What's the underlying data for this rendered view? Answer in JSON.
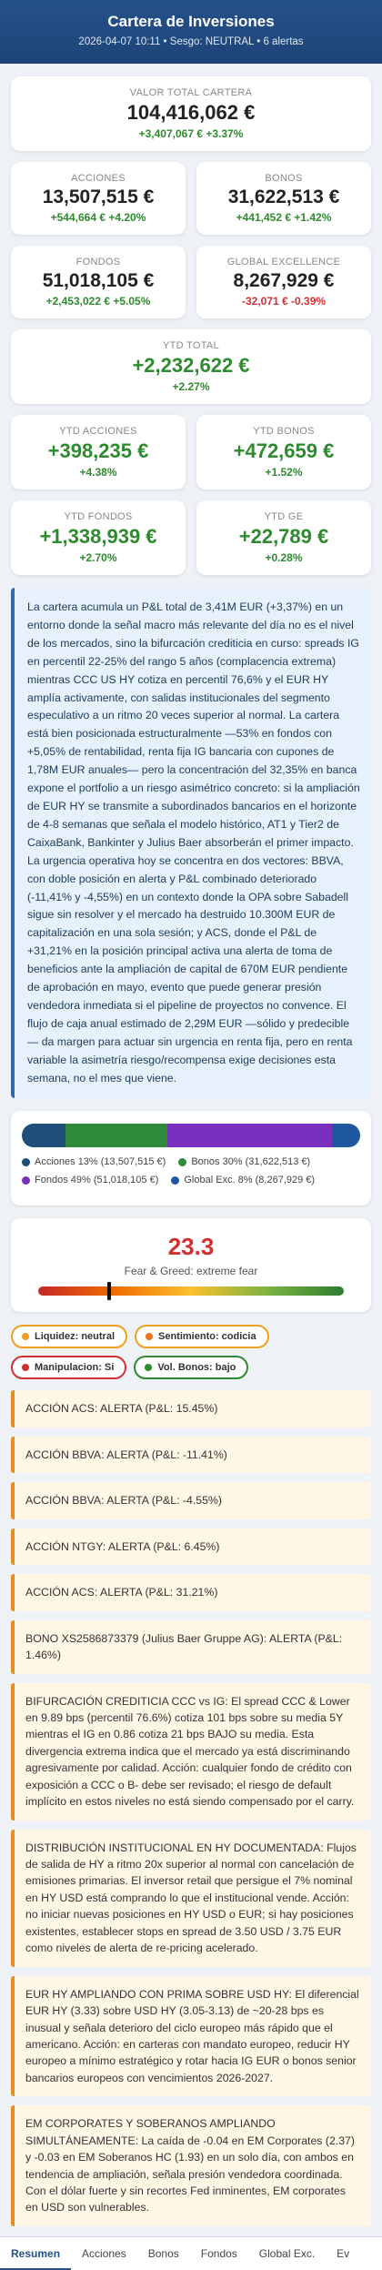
{
  "header": {
    "title": "Cartera de Inversiones",
    "subtitle": "2026-04-07 10:11 • Sesgo: NEUTRAL • 6 alertas"
  },
  "total": {
    "label": "VALOR TOTAL CARTERA",
    "value": "104,416,062 €",
    "change": "+3,407,067 € +3.37%"
  },
  "cards": [
    {
      "label": "ACCIONES",
      "value": "13,507,515 €",
      "change": "+544,664 € +4.20%",
      "tone": "pos"
    },
    {
      "label": "BONOS",
      "value": "31,622,513 €",
      "change": "+441,452 € +1.42%",
      "tone": "pos"
    },
    {
      "label": "FONDOS",
      "value": "51,018,105 €",
      "change": "+2,453,022 € +5.05%",
      "tone": "pos"
    },
    {
      "label": "GLOBAL EXCELLENCE",
      "value": "8,267,929 €",
      "change": "-32,071 € -0.39%",
      "tone": "neg"
    }
  ],
  "ytd_total": {
    "label": "YTD TOTAL",
    "value": "+2,232,622 €",
    "pct": "+2.27%"
  },
  "ytd_cards": [
    {
      "label": "YTD ACCIONES",
      "value": "+398,235 €",
      "pct": "+4.38%"
    },
    {
      "label": "YTD BONOS",
      "value": "+472,659 €",
      "pct": "+1.52%"
    },
    {
      "label": "YTD FONDOS",
      "value": "+1,338,939 €",
      "pct": "+2.70%"
    },
    {
      "label": "YTD GE",
      "value": "+22,789 €",
      "pct": "+0.28%"
    }
  ],
  "narrative": "La cartera acumula un P&L total de 3,41M EUR (+3,37%) en un entorno donde la señal macro más relevante del día no es el nivel de los mercados, sino la bifurcación crediticia en curso: spreads IG en percentil 22-25% del rango 5 años (complacencia extrema) mientras CCC US HY cotiza en percentil 76,6% y el EUR HY amplía activamente, con salidas institucionales del segmento especulativo a un ritmo 20 veces superior al normal. La cartera está bien posicionada estructuralmente —53% en fondos con +5,05% de rentabilidad, renta fija IG bancaria con cupones de 1,78M EUR anuales— pero la concentración del 32,35% en banca expone el portfolio a un riesgo asimétrico concreto: si la ampliación de EUR HY se transmite a subordinados bancarios en el horizonte de 4-8 semanas que señala el modelo histórico, AT1 y Tier2 de CaixaBank, Bankinter y Julius Baer absorberán el primer impacto. La urgencia operativa hoy se concentra en dos vectores: BBVA, con doble posición en alerta y P&L combinado deteriorado (-11,41% y -4,55%) en un contexto donde la OPA sobre Sabadell sigue sin resolver y el mercado ha destruido 10.300M EUR de capitalización en una sola sesión; y ACS, donde el P&L de +31,21% en la posición principal activa una alerta de toma de beneficios ante la ampliación de capital de 670M EUR pendiente de aprobación en mayo, evento que puede generar presión vendedora inmediata si el pipeline de proyectos no convence. El flujo de caja anual estimado de 2,29M EUR —sólido y predecible— da margen para actuar sin urgencia en renta fija, pero en renta variable la asimetría riesgo/recompensa exige decisiones esta semana, no el mes que viene.",
  "allocation": {
    "segments": [
      {
        "name": "Acciones",
        "pct": 13,
        "color": "#1f4e7a"
      },
      {
        "name": "Bonos",
        "pct": 30,
        "color": "#2e8a3a"
      },
      {
        "name": "Fondos",
        "pct": 49,
        "color": "#7b2fbf"
      },
      {
        "name": "Global Exc.",
        "pct": 8,
        "color": "#1e56a0"
      }
    ],
    "legend": [
      {
        "text": "Acciones 13% (13,507,515 €)",
        "color": "#1f4e7a"
      },
      {
        "text": "Bonos 30% (31,622,513 €)",
        "color": "#2e8a3a"
      },
      {
        "text": "Fondos 49% (51,018,105 €)",
        "color": "#7b2fbf"
      },
      {
        "text": "Global Exc. 8% (8,267,929 €)",
        "color": "#1e56a0"
      }
    ]
  },
  "fear_greed": {
    "value": "23.3",
    "level": 0.233,
    "label": "Fear & Greed: extreme fear"
  },
  "badges": [
    {
      "text": "Liquidez: neutral",
      "border": "#f0a020",
      "dot": "#f0a020"
    },
    {
      "text": "Sentimiento: codicia",
      "border": "#f0a020",
      "dot": "#f07020"
    },
    {
      "text": "Manipulacion: Si",
      "border": "#d23030",
      "dot": "#d23030"
    },
    {
      "text": "Vol. Bonos: bajo",
      "border": "#2e8a2e",
      "dot": "#2e8a2e"
    }
  ],
  "alerts": [
    "ACCIÓN ACS: ALERTA (P&L: 15.45%)",
    "ACCIÓN BBVA: ALERTA (P&L: -11.41%)",
    "ACCIÓN BBVA: ALERTA (P&L: -4.55%)",
    "ACCIÓN NTGY: ALERTA (P&L: 6.45%)",
    "ACCIÓN ACS: ALERTA (P&L: 31.21%)",
    "BONO XS2586873379 (Julius Baer Gruppe AG): ALERTA (P&L: 1.46%)",
    "BIFURCACIÓN CREDITICIA CCC vs IG: El spread CCC & Lower en 9.89 bps (percentil 76.6%) cotiza 101 bps sobre su media 5Y mientras el IG en 0.86 cotiza 21 bps BAJO su media. Esta divergencia extrema indica que el mercado ya está discriminando agresivamente por calidad. Acción: cualquier fondo de crédito con exposición a CCC o B- debe ser revisado; el riesgo de default implícito en estos niveles no está siendo compensado por el carry.",
    "DISTRIBUCIÓN INSTITUCIONAL EN HY DOCUMENTADA: Flujos de salida de HY a ritmo 20x superior al normal con cancelación de emisiones primarias. El inversor retail que persigue el 7% nominal en HY USD está comprando lo que el institucional vende. Acción: no iniciar nuevas posiciones en HY USD o EUR; si hay posiciones existentes, establecer stops en spread de 3.50 USD / 3.75 EUR como niveles de alerta de re-pricing acelerado.",
    "EUR HY AMPLIANDO CON PRIMA SOBRE USD HY: El diferencial EUR HY (3.33) sobre USD HY (3.05-3.13) de ~20-28 bps es inusual y señala deterioro del ciclo europeo más rápido que el americano. Acción: en carteras con mandato europeo, reducir HY europeo a mínimo estratégico y rotar hacia IG EUR o bonos senior bancarios europeos con vencimientos 2026-2027.",
    "EM CORPORATES Y SOBERANOS AMPLIANDO SIMULTÁNEAMENTE: La caída de -0.04 en EM Corporates (2.37) y -0.03 en EM Soberanos HC (1.93) en un solo día, con ambos en tendencia de ampliación, señala presión vendedora coordinada. Con el dólar fuerte y sin recortes Fed inminentes, EM corporates en USD son vulnerables."
  ],
  "nav": [
    "Resumen",
    "Acciones",
    "Bonos",
    "Fondos",
    "Global Exc.",
    "Ev"
  ]
}
